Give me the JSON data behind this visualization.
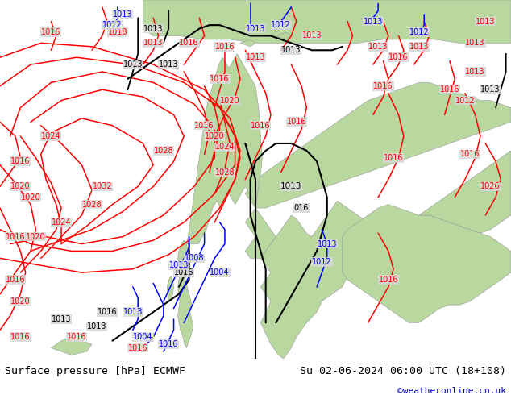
{
  "title_left": "Surface pressure [hPa] ECMWF",
  "title_right": "Su 02-06-2024 06:00 UTC (18+108)",
  "copyright": "©weatheronline.co.uk",
  "ocean_color": "#d8d8d8",
  "land_color": "#b8d8a0",
  "footer_bg": "#ffffff",
  "footer_text_color": "#000000",
  "copyright_color": "#0000cc",
  "figsize": [
    6.34,
    4.9
  ],
  "dpi": 100
}
